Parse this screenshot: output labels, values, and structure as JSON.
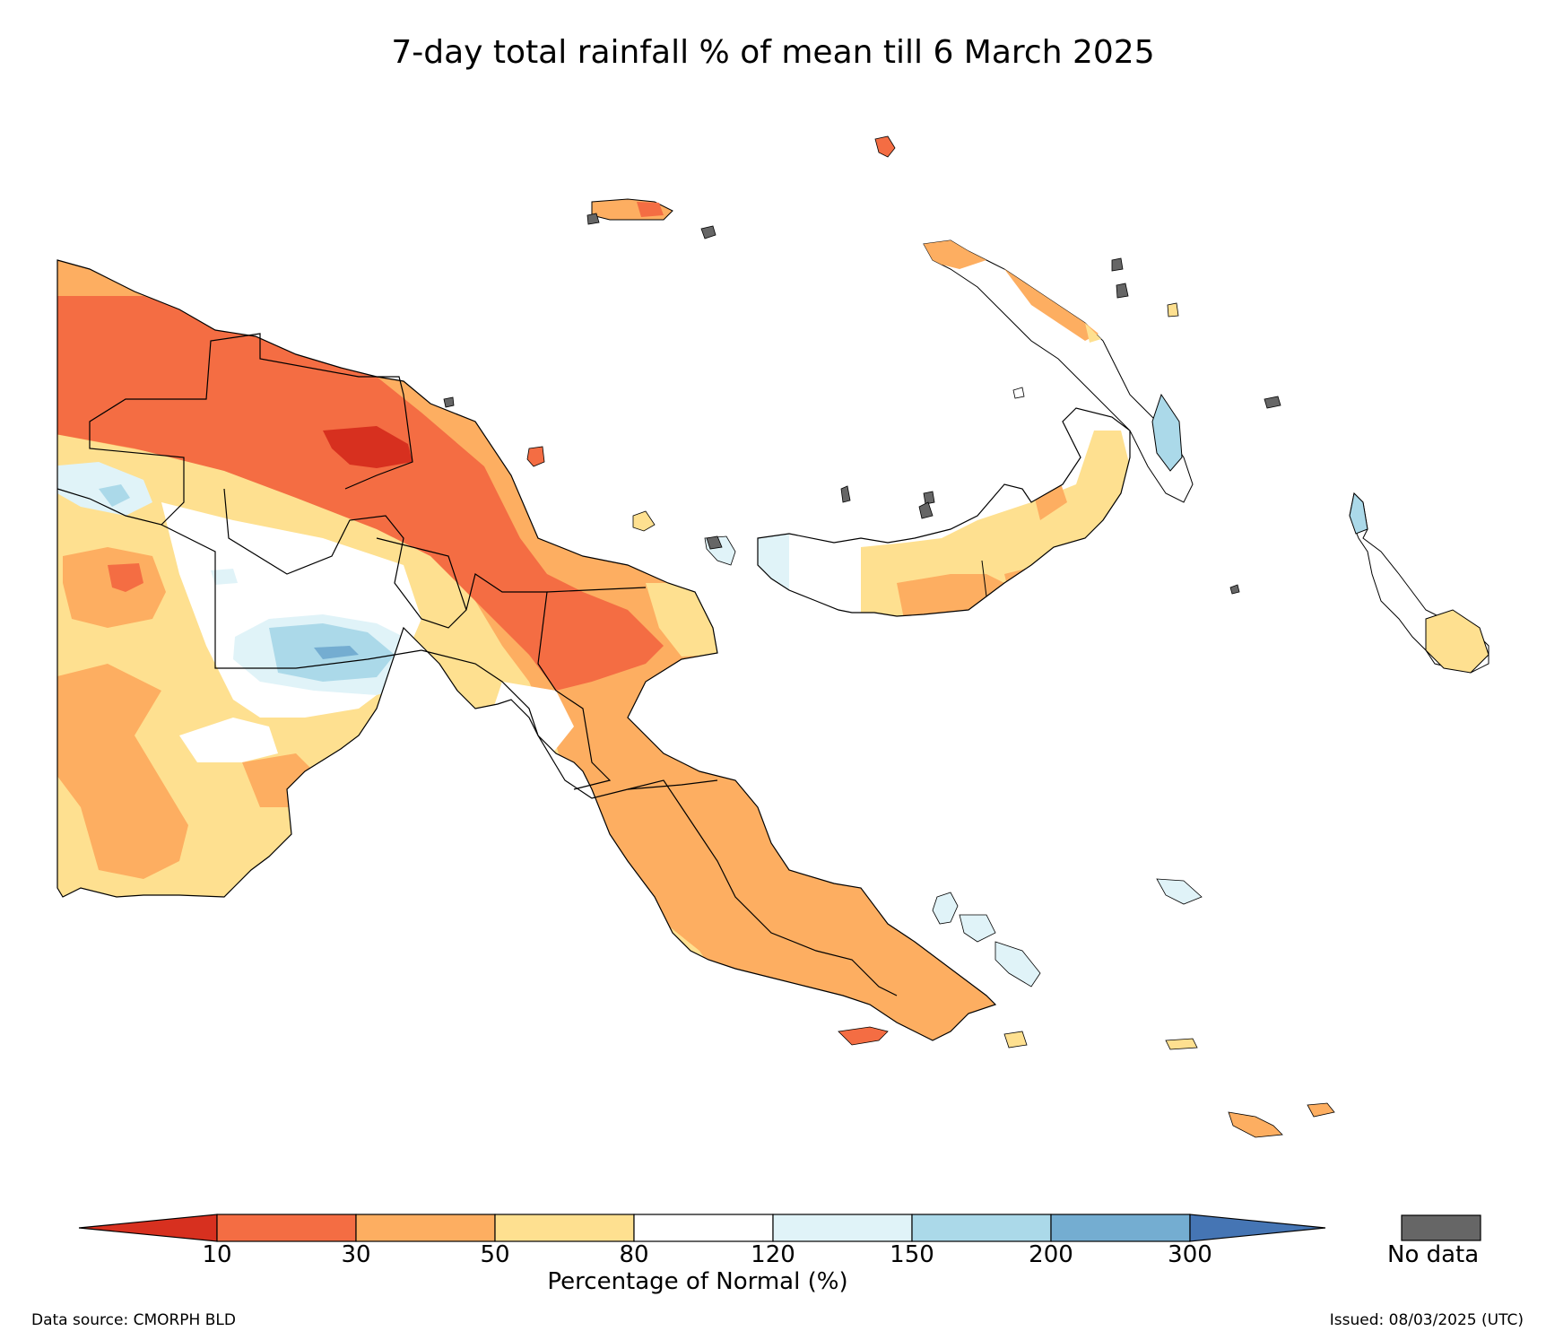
{
  "title": "7-day total rainfall % of mean till 6 March 2025",
  "colors": {
    "lt10": "#d7301f",
    "c10_30": "#f46d43",
    "c30_50": "#fdae61",
    "c50_80": "#fee090",
    "c80_120": "#ffffff",
    "c120_150": "#e0f3f8",
    "c150_200": "#abd9e9",
    "c200_300": "#74add1",
    "gt300": "#4575b4",
    "nodata": "#666666",
    "outline": "#000000"
  },
  "colorbar": {
    "ticks": [
      "10",
      "30",
      "50",
      "80",
      "120",
      "150",
      "200",
      "300"
    ],
    "label": "Percentage of Normal (%)",
    "nodata_label": "No data"
  },
  "footer": {
    "data_source": "Data source: CMORPH BLD",
    "issued": "Issued: 08/03/2025 (UTC)"
  }
}
